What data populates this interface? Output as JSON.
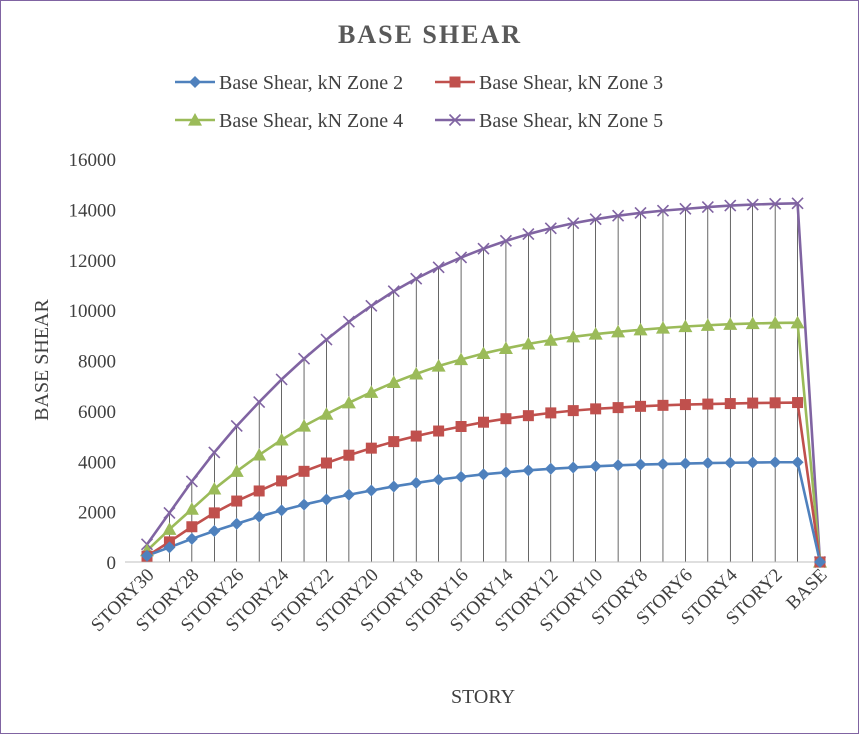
{
  "chart_data": {
    "type": "line",
    "title": "BASE SHEAR",
    "xlabel": "STORY",
    "ylabel": "BASE SHEAR",
    "ylim": [
      0,
      16000
    ],
    "yticks": [
      0,
      2000,
      4000,
      6000,
      8000,
      10000,
      12000,
      14000,
      16000
    ],
    "grid": false,
    "legend_position": "top",
    "categories": [
      "STORY30",
      "STORY29",
      "STORY28",
      "STORY27",
      "STORY26",
      "STORY25",
      "STORY24",
      "STORY23",
      "STORY22",
      "STORY21",
      "STORY20",
      "STORY19",
      "STORY18",
      "STORY17",
      "STORY16",
      "STORY15",
      "STORY14",
      "STORY13",
      "STORY12",
      "STORY11",
      "STORY10",
      "STORY9",
      "STORY8",
      "STORY7",
      "STORY6",
      "STORY5",
      "STORY4",
      "STORY3",
      "STORY2",
      "STORY1",
      "BASE"
    ],
    "tick_labels": [
      "STORY30",
      "STORY28",
      "STORY26",
      "STORY24",
      "STORY22",
      "STORY20",
      "STORY18",
      "STORY16",
      "STORY14",
      "STORY12",
      "STORY10",
      "STORY8",
      "STORY6",
      "STORY4",
      "STORY2",
      "BASE"
    ],
    "series": [
      {
        "name": "Base Shear, kN Zone 2",
        "color": "#4f81bd",
        "marker": "diamond",
        "values": [
          250,
          580,
          920,
          1230,
          1520,
          1800,
          2050,
          2280,
          2480,
          2670,
          2840,
          3000,
          3140,
          3270,
          3380,
          3480,
          3560,
          3640,
          3700,
          3750,
          3800,
          3840,
          3870,
          3890,
          3910,
          3930,
          3940,
          3950,
          3960,
          3960,
          0
        ]
      },
      {
        "name": "Base Shear, kN Zone 3",
        "color": "#c0504d",
        "marker": "square",
        "values": [
          230,
          800,
          1400,
          1950,
          2420,
          2820,
          3220,
          3600,
          3930,
          4240,
          4520,
          4780,
          5000,
          5200,
          5380,
          5550,
          5690,
          5810,
          5920,
          6010,
          6080,
          6130,
          6180,
          6220,
          6250,
          6270,
          6290,
          6310,
          6320,
          6330,
          0
        ]
      },
      {
        "name": "Base Shear, kN Zone 4",
        "color": "#9bbb59",
        "marker": "triangle",
        "values": [
          450,
          1300,
          2100,
          2900,
          3600,
          4250,
          4850,
          5400,
          5870,
          6320,
          6740,
          7130,
          7470,
          7780,
          8040,
          8280,
          8480,
          8660,
          8810,
          8940,
          9050,
          9140,
          9220,
          9290,
          9350,
          9400,
          9440,
          9470,
          9490,
          9500,
          0
        ]
      },
      {
        "name": "Base Shear, kN Zone 5",
        "color": "#8064a2",
        "marker": "x",
        "values": [
          700,
          1950,
          3200,
          4350,
          5400,
          6350,
          7250,
          8070,
          8830,
          9540,
          10170,
          10750,
          11250,
          11700,
          12090,
          12440,
          12750,
          13020,
          13250,
          13450,
          13610,
          13750,
          13860,
          13950,
          14020,
          14090,
          14150,
          14190,
          14220,
          14240,
          0
        ]
      }
    ]
  }
}
